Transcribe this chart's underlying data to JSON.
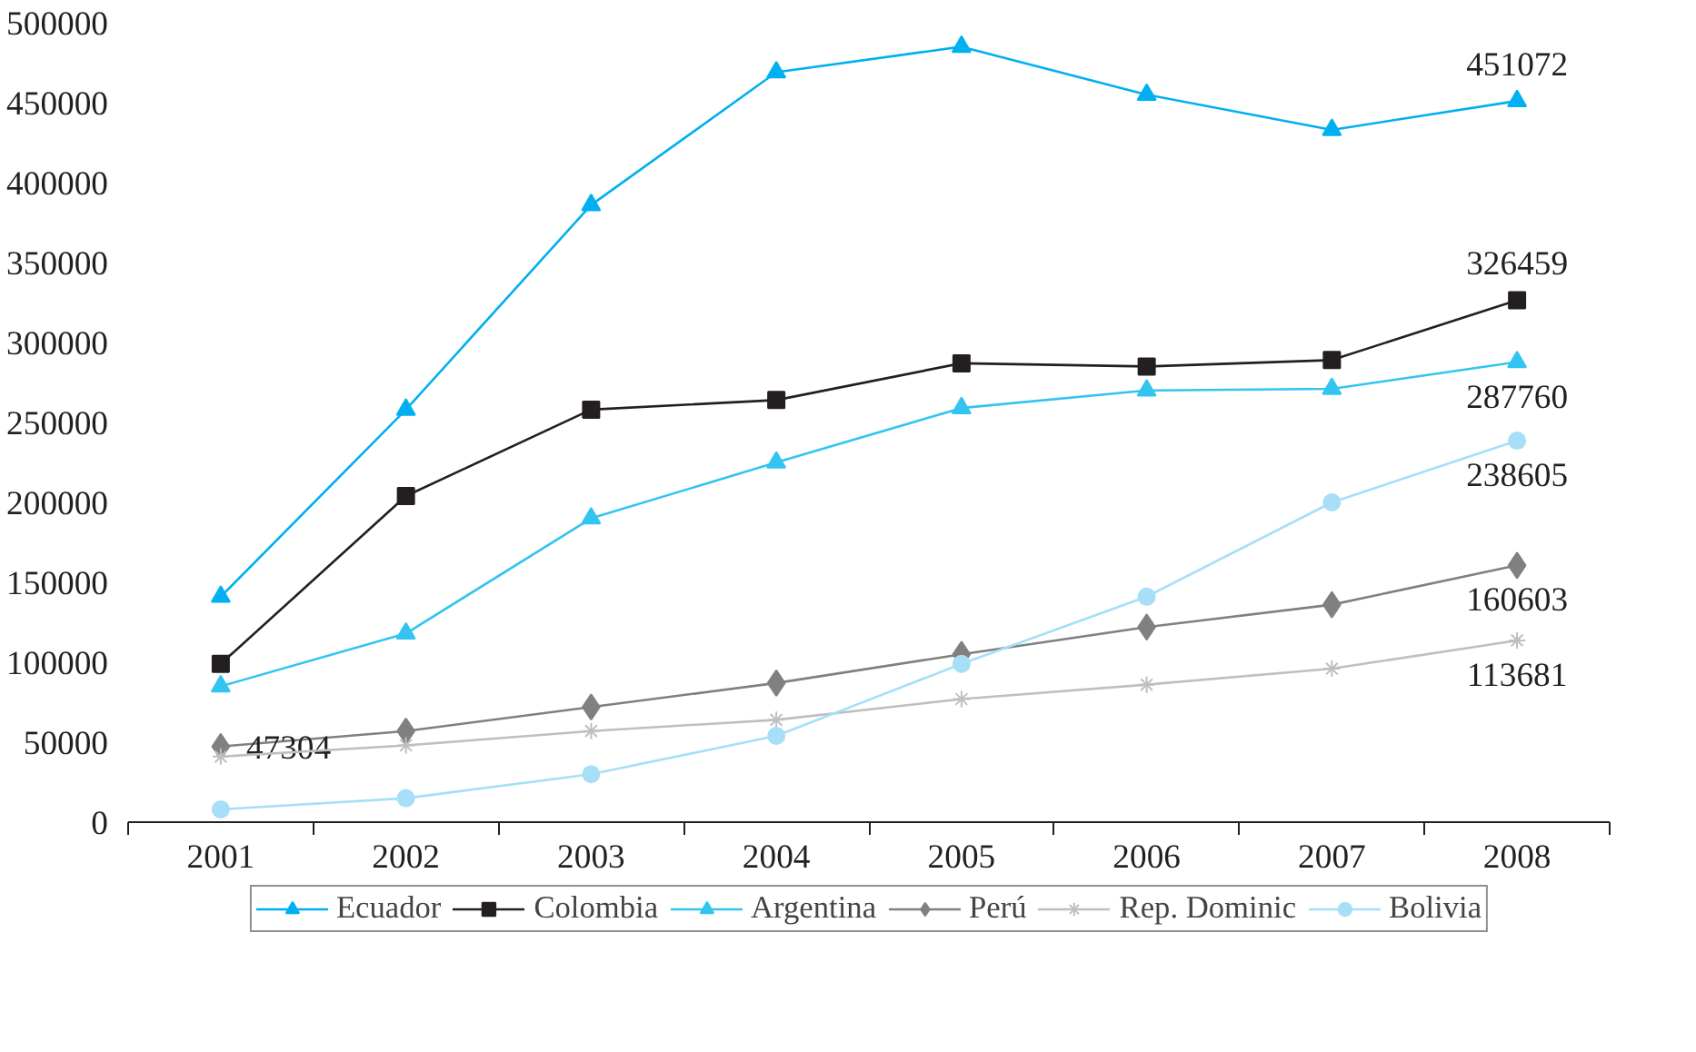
{
  "chart_data": {
    "type": "line",
    "categories": [
      "2001",
      "2002",
      "2003",
      "2004",
      "2005",
      "2006",
      "2007",
      "2008"
    ],
    "series": [
      {
        "name": "Ecuador",
        "color": "#00b0f0",
        "marker": "triangle",
        "values": [
          141000,
          258000,
          386000,
          469000,
          485000,
          455000,
          433000,
          451072
        ],
        "value_labels": [
          null,
          null,
          null,
          null,
          null,
          null,
          null,
          "451072"
        ]
      },
      {
        "name": "Colombia",
        "color": "#231f20",
        "marker": "square",
        "values": [
          99000,
          204000,
          258000,
          264000,
          287000,
          285000,
          289000,
          326459
        ],
        "value_labels": [
          null,
          null,
          null,
          null,
          null,
          null,
          null,
          "326459"
        ]
      },
      {
        "name": "Argentina",
        "color": "#33c4f0",
        "marker": "triangle",
        "values": [
          85000,
          118000,
          190000,
          225000,
          259000,
          270000,
          271000,
          287760
        ],
        "value_labels": [
          null,
          null,
          null,
          null,
          null,
          null,
          null,
          "287760"
        ]
      },
      {
        "name": "Perú",
        "color": "#808080",
        "marker": "diamond",
        "values": [
          47304,
          57000,
          72000,
          87000,
          105000,
          122000,
          136000,
          160603
        ],
        "value_labels": [
          "47304",
          null,
          null,
          null,
          null,
          null,
          null,
          "160603"
        ]
      },
      {
        "name": "Rep. Dominic",
        "color": "#bfbfbf",
        "marker": "cross",
        "values": [
          41000,
          48000,
          57000,
          64000,
          77000,
          86000,
          96000,
          113681
        ],
        "value_labels": [
          null,
          null,
          null,
          null,
          null,
          null,
          null,
          "113681"
        ]
      },
      {
        "name": "Bolivia",
        "color": "#a6dff7",
        "marker": "circle",
        "values": [
          8000,
          15000,
          30000,
          54000,
          99000,
          141000,
          200000,
          238605
        ],
        "value_labels": [
          null,
          null,
          null,
          null,
          null,
          null,
          null,
          "238605"
        ]
      }
    ],
    "ylim": [
      0,
      500000
    ],
    "yticks": [
      0,
      50000,
      100000,
      150000,
      200000,
      250000,
      300000,
      350000,
      400000,
      450000,
      500000
    ],
    "grid": false,
    "legend": "bottom"
  }
}
